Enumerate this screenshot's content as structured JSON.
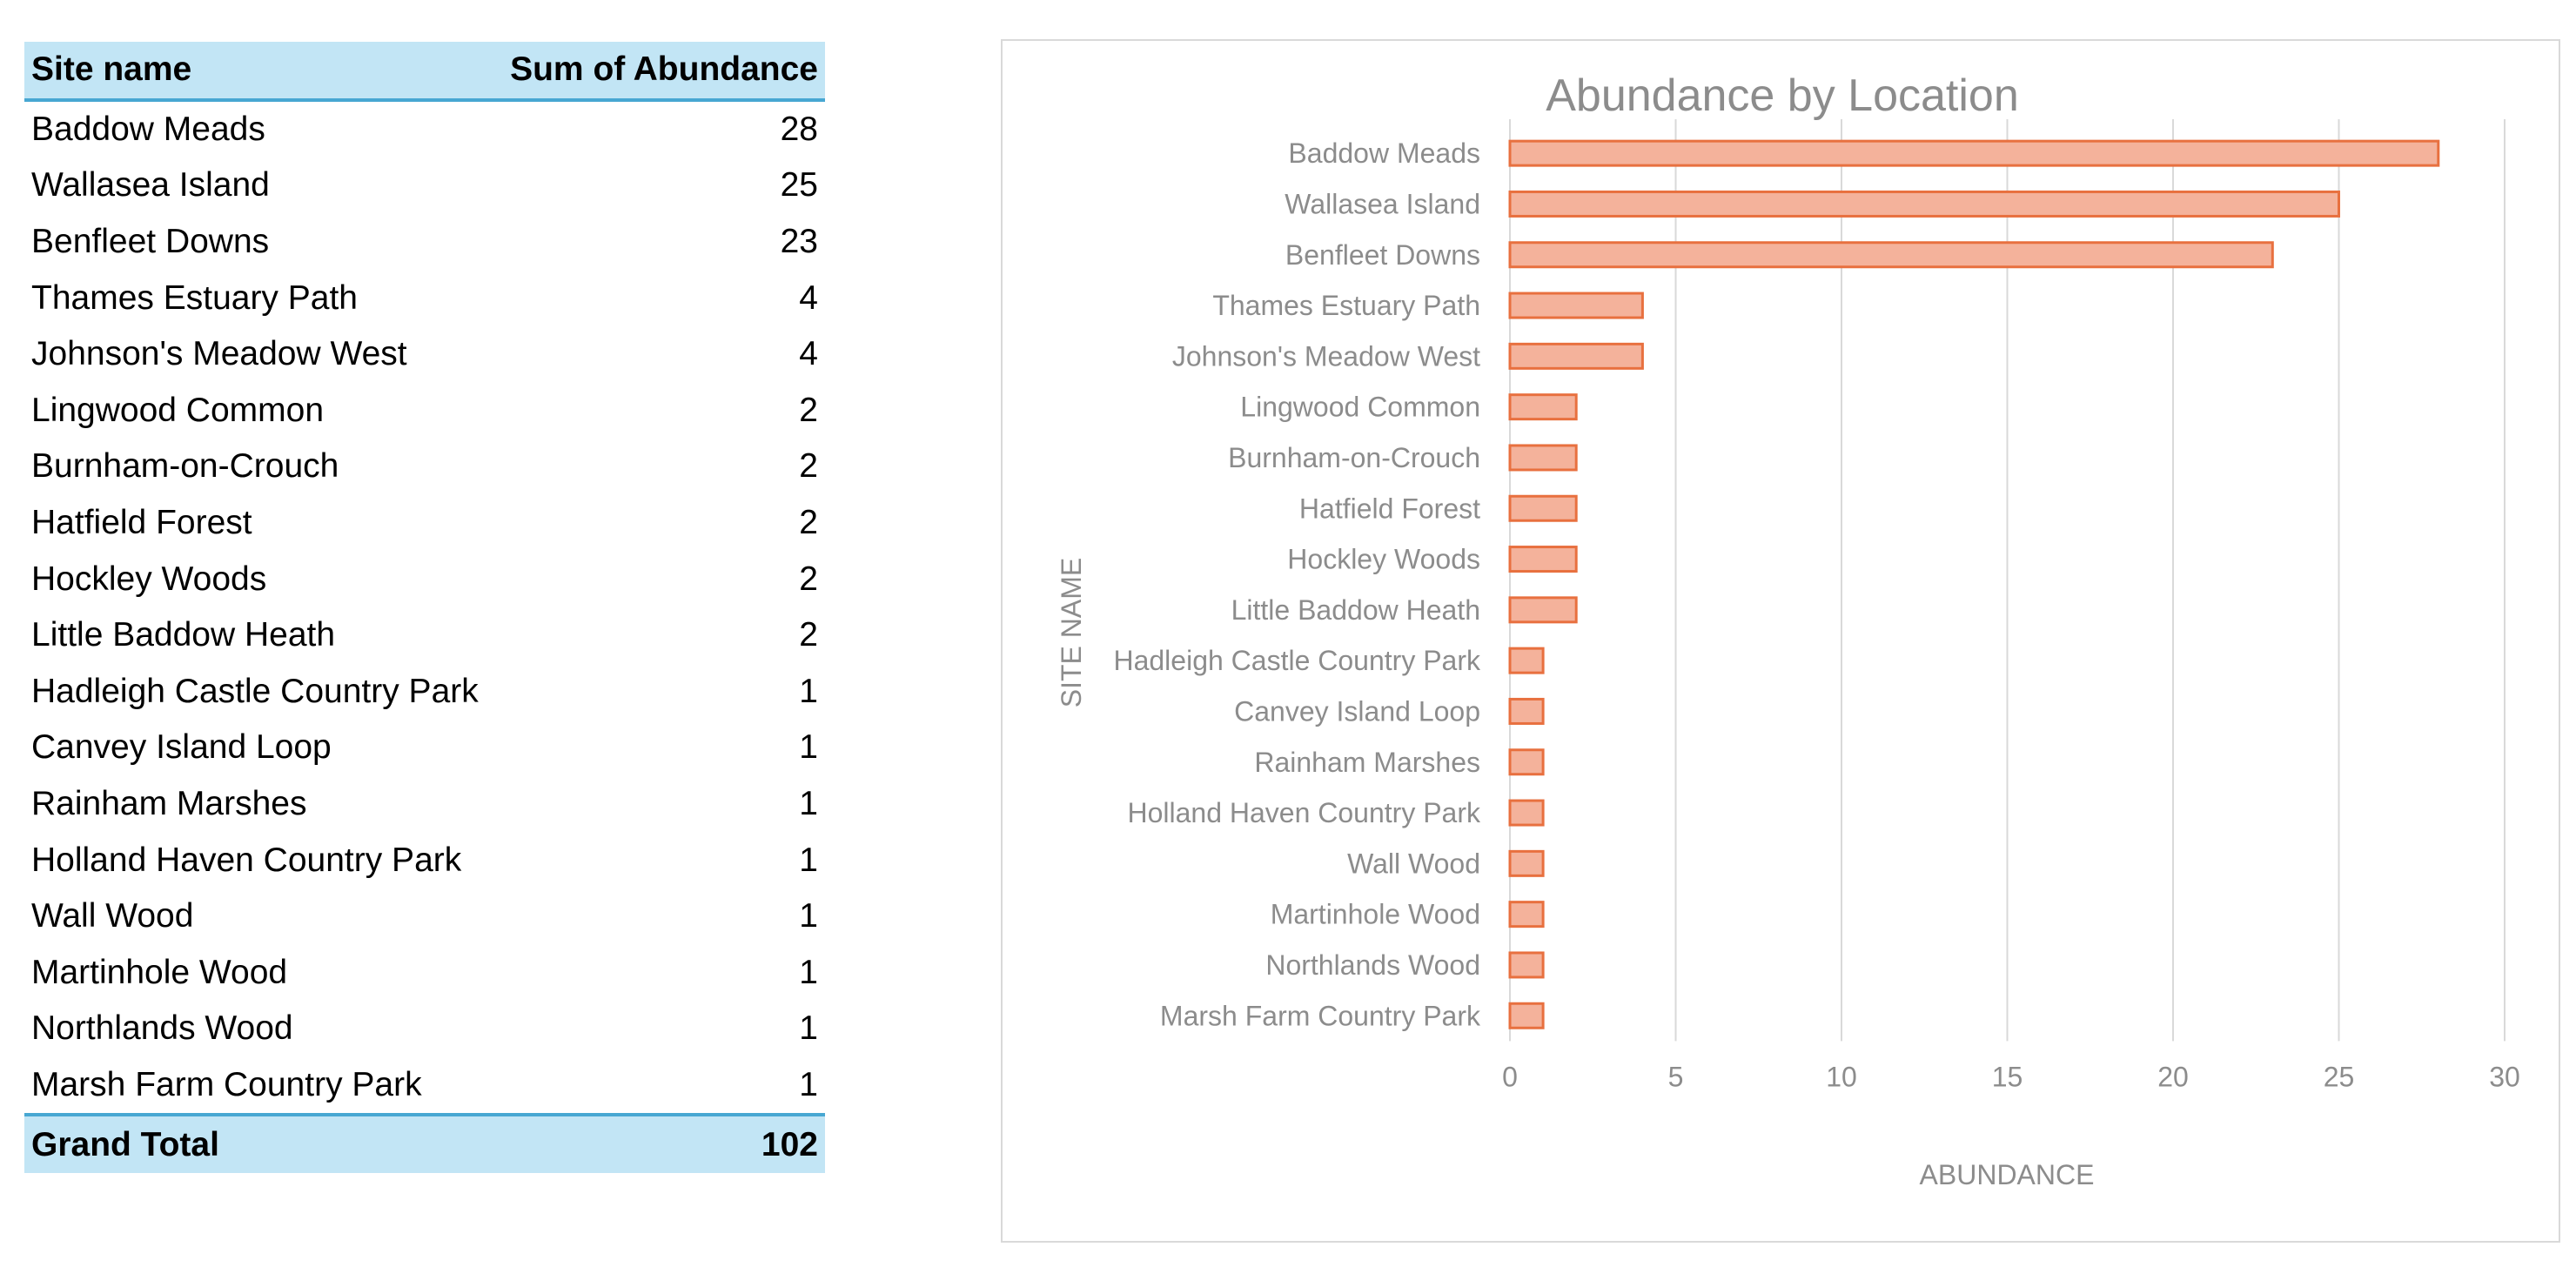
{
  "table": {
    "header_site": "Site name",
    "header_sum": "Sum of Abundance",
    "rows": [
      {
        "site": "Baddow Meads",
        "value": "28"
      },
      {
        "site": "Wallasea Island",
        "value": "25"
      },
      {
        "site": "Benfleet Downs",
        "value": "23"
      },
      {
        "site": "Thames Estuary Path",
        "value": "4"
      },
      {
        "site": "Johnson's Meadow West",
        "value": "4"
      },
      {
        "site": "Lingwood Common",
        "value": "2"
      },
      {
        "site": "Burnham-on-Crouch",
        "value": "2"
      },
      {
        "site": "Hatfield Forest",
        "value": "2"
      },
      {
        "site": "Hockley Woods",
        "value": "2"
      },
      {
        "site": "Little Baddow Heath",
        "value": "2"
      },
      {
        "site": "Hadleigh Castle Country Park",
        "value": "1"
      },
      {
        "site": "Canvey Island Loop",
        "value": "1"
      },
      {
        "site": "Rainham Marshes",
        "value": "1"
      },
      {
        "site": "Holland Haven Country Park",
        "value": "1"
      },
      {
        "site": "Wall Wood",
        "value": "1"
      },
      {
        "site": "Martinhole Wood",
        "value": "1"
      },
      {
        "site": "Northlands Wood",
        "value": "1"
      },
      {
        "site": "Marsh Farm Country Park",
        "value": "1"
      }
    ],
    "total_label": "Grand Total",
    "total_value": "102"
  },
  "colors": {
    "header_fill": "#c2e5f5",
    "header_border": "#47a7d2",
    "bar_fill": "#f4b29b",
    "bar_stroke": "#e8703f",
    "grid": "#d9d9d9",
    "text_muted": "#8c8c8c"
  },
  "chart_data": {
    "type": "bar",
    "orientation": "horizontal",
    "title": "Abundance by Location",
    "xlabel": "ABUNDANCE",
    "ylabel": "SITE NAME",
    "categories": [
      "Baddow Meads",
      "Wallasea Island",
      "Benfleet Downs",
      "Thames Estuary Path",
      "Johnson's Meadow West",
      "Lingwood Common",
      "Burnham-on-Crouch",
      "Hatfield Forest",
      "Hockley Woods",
      "Little Baddow Heath",
      "Hadleigh Castle Country Park",
      "Canvey Island Loop",
      "Rainham Marshes",
      "Holland Haven Country Park",
      "Wall Wood",
      "Martinhole Wood",
      "Northlands Wood",
      "Marsh Farm Country Park"
    ],
    "values": [
      28,
      25,
      23,
      4,
      4,
      2,
      2,
      2,
      2,
      2,
      1,
      1,
      1,
      1,
      1,
      1,
      1,
      1
    ],
    "xlim": [
      0,
      30
    ],
    "xticks": [
      0,
      5,
      10,
      15,
      20,
      25,
      30
    ],
    "grid": true,
    "legend": "none"
  }
}
